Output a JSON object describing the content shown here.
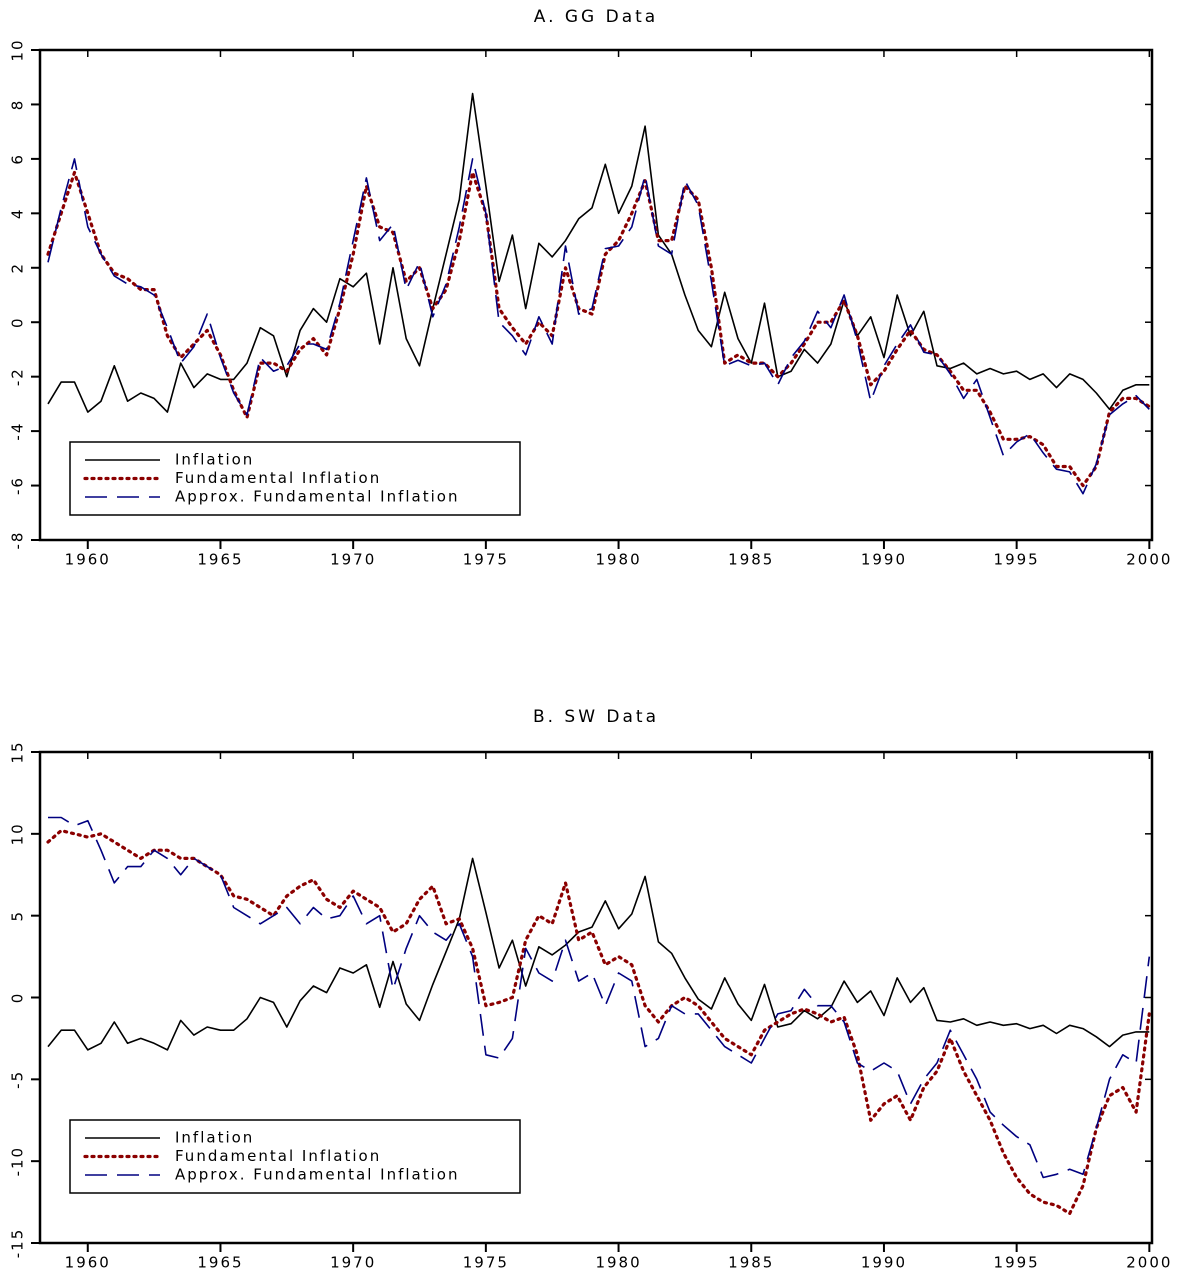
{
  "chart_data": [
    {
      "type": "line",
      "title": "A. GG Data",
      "x": [
        1958.5,
        1959,
        1959.5,
        1960,
        1960.5,
        1961,
        1961.5,
        1962,
        1962.5,
        1963,
        1963.5,
        1964,
        1964.5,
        1965,
        1965.5,
        1966,
        1966.5,
        1967,
        1967.5,
        1968,
        1968.5,
        1969,
        1969.5,
        1970,
        1970.5,
        1971,
        1971.5,
        1972,
        1972.5,
        1973,
        1973.5,
        1974,
        1974.5,
        1975,
        1975.5,
        1976,
        1976.5,
        1977,
        1977.5,
        1978,
        1978.5,
        1979,
        1979.5,
        1980,
        1980.5,
        1981,
        1981.5,
        1982,
        1982.5,
        1983,
        1983.5,
        1984,
        1984.5,
        1985,
        1985.5,
        1986,
        1986.5,
        1987,
        1987.5,
        1988,
        1988.5,
        1989,
        1989.5,
        1990,
        1990.5,
        1991,
        1991.5,
        1992,
        1992.5,
        1993,
        1993.5,
        1994,
        1994.5,
        1995,
        1995.5,
        1996,
        1996.5,
        1997,
        1997.5,
        1998,
        1998.5,
        1999,
        1999.5,
        2000
      ],
      "series": [
        {
          "name": "Inflation",
          "color": "#000000",
          "style": "solid",
          "values": [
            -3.0,
            -2.2,
            -2.2,
            -3.3,
            -2.9,
            -1.6,
            -2.9,
            -2.6,
            -2.8,
            -3.3,
            -1.5,
            -2.4,
            -1.9,
            -2.1,
            -2.1,
            -1.5,
            -0.2,
            -0.5,
            -2.0,
            -0.3,
            0.5,
            0.0,
            1.6,
            1.3,
            1.8,
            -0.8,
            2.0,
            -0.6,
            -1.6,
            0.5,
            2.5,
            4.5,
            8.4,
            5.0,
            1.5,
            3.2,
            0.5,
            2.9,
            2.4,
            3.0,
            3.8,
            4.2,
            5.8,
            4.0,
            5.0,
            7.2,
            3.2,
            2.5,
            1.0,
            -0.3,
            -0.9,
            1.1,
            -0.6,
            -1.5,
            0.7,
            -2.0,
            -1.8,
            -1.0,
            -1.5,
            -0.8,
            0.8,
            -0.5,
            0.2,
            -1.3,
            1.0,
            -0.5,
            0.4,
            -1.6,
            -1.7,
            -1.5,
            -1.9,
            -1.7,
            -1.9,
            -1.8,
            -2.1,
            -1.9,
            -2.4,
            -1.9,
            -2.1,
            -2.6,
            -3.2,
            -2.5,
            -2.3,
            -2.3
          ]
        },
        {
          "name": "Fundamental Inflation",
          "color": "#8b0000",
          "style": "dotted",
          "values": [
            2.5,
            4.0,
            5.5,
            4.0,
            2.5,
            1.8,
            1.6,
            1.2,
            1.2,
            -0.5,
            -1.3,
            -0.8,
            -0.3,
            -1.2,
            -2.5,
            -3.5,
            -1.5,
            -1.5,
            -1.8,
            -1.0,
            -0.6,
            -1.2,
            0.5,
            2.5,
            5.0,
            3.5,
            3.3,
            1.5,
            2.0,
            0.5,
            1.2,
            3.0,
            5.5,
            4.0,
            0.5,
            -0.2,
            -0.8,
            0.0,
            -0.5,
            2.0,
            0.5,
            0.3,
            2.5,
            3.0,
            4.0,
            5.2,
            3.0,
            3.0,
            5.0,
            4.5,
            2.0,
            -1.5,
            -1.2,
            -1.5,
            -1.5,
            -2.0,
            -1.5,
            -0.8,
            0.0,
            0.0,
            0.8,
            -0.5,
            -2.3,
            -1.8,
            -1.0,
            -0.3,
            -1.0,
            -1.2,
            -1.8,
            -2.5,
            -2.5,
            -3.3,
            -4.3,
            -4.3,
            -4.2,
            -4.5,
            -5.3,
            -5.3,
            -6.0,
            -5.3,
            -3.3,
            -2.8,
            -2.8,
            -3.1
          ]
        },
        {
          "name": "Approx. Fundamental Inflation",
          "color": "#000080",
          "style": "dashed",
          "values": [
            2.2,
            4.2,
            6.0,
            3.5,
            2.5,
            1.7,
            1.4,
            1.3,
            1.0,
            -0.2,
            -1.5,
            -0.9,
            0.3,
            -1.3,
            -2.6,
            -3.4,
            -1.3,
            -1.8,
            -1.6,
            -0.8,
            -0.8,
            -1.0,
            0.7,
            3.0,
            5.3,
            3.0,
            3.6,
            1.2,
            2.2,
            0.2,
            1.4,
            3.5,
            6.0,
            4.0,
            0.0,
            -0.5,
            -1.2,
            0.2,
            -0.8,
            2.8,
            0.3,
            0.5,
            2.7,
            2.8,
            3.5,
            5.4,
            2.8,
            2.5,
            5.2,
            4.3,
            1.5,
            -1.6,
            -1.4,
            -1.6,
            -1.5,
            -2.3,
            -1.3,
            -0.7,
            0.4,
            -0.2,
            1.0,
            -0.7,
            -2.9,
            -1.6,
            -0.8,
            -0.1,
            -1.1,
            -1.2,
            -1.9,
            -2.8,
            -2.1,
            -3.5,
            -4.9,
            -4.4,
            -4.1,
            -4.8,
            -5.4,
            -5.5,
            -6.3,
            -5.2,
            -3.4,
            -3.0,
            -2.7,
            -3.2
          ]
        }
      ],
      "xlim": [
        1958.2,
        2000.1
      ],
      "xticks": [
        1960,
        1965,
        1970,
        1975,
        1980,
        1985,
        1990,
        1995,
        2000
      ],
      "ylim": [
        -8,
        10
      ],
      "yticks": [
        -8,
        -6,
        -4,
        -2,
        0,
        2,
        4,
        6,
        8,
        10
      ],
      "legend": "lower left"
    },
    {
      "type": "line",
      "title": "B. SW Data",
      "x": [
        1958.5,
        1959,
        1959.5,
        1960,
        1960.5,
        1961,
        1961.5,
        1962,
        1962.5,
        1963,
        1963.5,
        1964,
        1964.5,
        1965,
        1965.5,
        1966,
        1966.5,
        1967,
        1967.5,
        1968,
        1968.5,
        1969,
        1969.5,
        1970,
        1970.5,
        1971,
        1971.5,
        1972,
        1972.5,
        1973,
        1973.5,
        1974,
        1974.5,
        1975,
        1975.5,
        1976,
        1976.5,
        1977,
        1977.5,
        1978,
        1978.5,
        1979,
        1979.5,
        1980,
        1980.5,
        1981,
        1981.5,
        1982,
        1982.5,
        1983,
        1983.5,
        1984,
        1984.5,
        1985,
        1985.5,
        1986,
        1986.5,
        1987,
        1987.5,
        1988,
        1988.5,
        1989,
        1989.5,
        1990,
        1990.5,
        1991,
        1991.5,
        1992,
        1992.5,
        1993,
        1993.5,
        1994,
        1994.5,
        1995,
        1995.5,
        1996,
        1996.5,
        1997,
        1997.5,
        1998,
        1998.5,
        1999,
        1999.5,
        2000
      ],
      "series": [
        {
          "name": "Inflation",
          "color": "#000000",
          "style": "solid",
          "values": [
            -3.0,
            -2.0,
            -2.0,
            -3.2,
            -2.8,
            -1.5,
            -2.8,
            -2.5,
            -2.8,
            -3.2,
            -1.4,
            -2.3,
            -1.8,
            -2.0,
            -2.0,
            -1.3,
            0.0,
            -0.3,
            -1.8,
            -0.2,
            0.7,
            0.3,
            1.8,
            1.5,
            2.0,
            -0.6,
            2.2,
            -0.4,
            -1.4,
            0.8,
            2.8,
            4.8,
            8.5,
            5.2,
            1.8,
            3.5,
            0.7,
            3.1,
            2.6,
            3.2,
            4.0,
            4.3,
            5.9,
            4.2,
            5.1,
            7.4,
            3.4,
            2.7,
            1.2,
            -0.1,
            -0.7,
            1.2,
            -0.4,
            -1.4,
            0.8,
            -1.8,
            -1.6,
            -0.8,
            -1.3,
            -0.6,
            1.0,
            -0.3,
            0.4,
            -1.1,
            1.2,
            -0.3,
            0.6,
            -1.4,
            -1.5,
            -1.3,
            -1.7,
            -1.5,
            -1.7,
            -1.6,
            -1.9,
            -1.7,
            -2.2,
            -1.7,
            -1.9,
            -2.4,
            -3.0,
            -2.3,
            -2.1,
            -2.1
          ]
        },
        {
          "name": "Fundamental Inflation",
          "color": "#8b0000",
          "style": "dotted",
          "values": [
            9.5,
            10.2,
            10.0,
            9.8,
            10.0,
            9.5,
            9.0,
            8.5,
            9.0,
            9.0,
            8.5,
            8.5,
            8.0,
            7.5,
            6.2,
            6.0,
            5.5,
            5.0,
            6.2,
            6.8,
            7.2,
            6.0,
            5.5,
            6.5,
            6.0,
            5.5,
            4.0,
            4.5,
            6.0,
            6.8,
            4.5,
            4.8,
            3.0,
            -0.5,
            -0.3,
            0.0,
            3.5,
            5.0,
            4.5,
            7.0,
            3.5,
            4.0,
            2.0,
            2.5,
            2.0,
            -0.5,
            -1.5,
            -0.5,
            0.0,
            -0.5,
            -1.5,
            -2.5,
            -3.0,
            -3.5,
            -2.0,
            -1.5,
            -1.0,
            -0.7,
            -1.0,
            -1.5,
            -1.2,
            -3.5,
            -7.5,
            -6.5,
            -6.0,
            -7.5,
            -5.5,
            -4.5,
            -2.5,
            -4.5,
            -6.0,
            -7.5,
            -9.5,
            -11.0,
            -12.0,
            -12.5,
            -12.7,
            -13.2,
            -11.5,
            -8.0,
            -6.0,
            -5.5,
            -7.0,
            -1.0
          ]
        },
        {
          "name": "Approx. Fundamental Inflation",
          "color": "#000080",
          "style": "dashed",
          "values": [
            11.0,
            11.0,
            10.5,
            10.8,
            9.0,
            7.0,
            8.0,
            8.0,
            9.0,
            8.5,
            7.5,
            8.5,
            8.0,
            7.5,
            5.5,
            5.0,
            4.5,
            5.0,
            5.5,
            4.5,
            5.5,
            4.8,
            5.0,
            6.2,
            4.5,
            5.0,
            0.5,
            3.0,
            5.0,
            4.0,
            3.5,
            4.5,
            2.5,
            -3.5,
            -3.7,
            -2.5,
            3.0,
            1.5,
            1.0,
            3.5,
            1.0,
            1.5,
            -0.5,
            1.5,
            1.0,
            -3.0,
            -2.5,
            -0.5,
            -1.0,
            -1.0,
            -2.0,
            -3.0,
            -3.5,
            -4.0,
            -2.5,
            -1.0,
            -0.8,
            0.5,
            -0.5,
            -0.5,
            -1.5,
            -4.0,
            -4.5,
            -4.0,
            -4.5,
            -6.5,
            -5.0,
            -4.0,
            -2.0,
            -3.5,
            -5.0,
            -7.0,
            -7.8,
            -8.5,
            -9.0,
            -11.0,
            -10.8,
            -10.5,
            -10.8,
            -8.0,
            -5.0,
            -3.5,
            -4.0,
            2.5
          ]
        }
      ],
      "xlim": [
        1958.2,
        2000.1
      ],
      "xticks": [
        1960,
        1965,
        1970,
        1975,
        1980,
        1985,
        1990,
        1995,
        2000
      ],
      "ylim": [
        -15,
        15
      ],
      "yticks": [
        -15,
        -10,
        -5,
        0,
        5,
        10,
        15
      ],
      "legend": "lower left"
    }
  ]
}
